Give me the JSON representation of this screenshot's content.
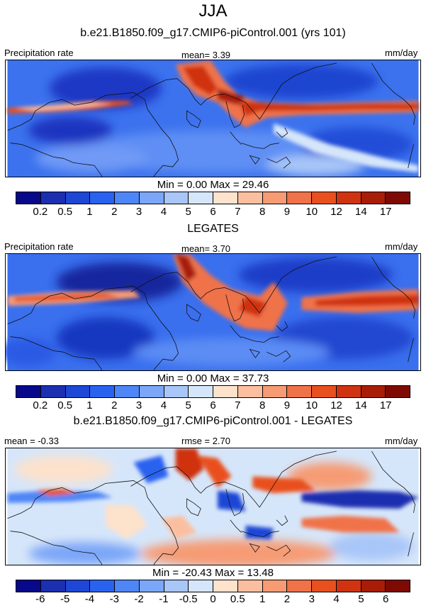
{
  "title": "JJA",
  "chart_data": [
    {
      "type": "heatmap",
      "title": "b.e21.B1850.f09_g17.CMIP6-piControl.001 (yrs 101)",
      "left_label": "Precipitation rate",
      "center_label": "mean=   3.39",
      "right_label": "mm/day",
      "stats": "Min =   0.00 Max =  29.46",
      "mean": 3.39,
      "min": 0.0,
      "max": 29.46,
      "colorbar_ticks": [
        "0.2",
        "0.5",
        "1",
        "2",
        "3",
        "4",
        "5",
        "6",
        "7",
        "8",
        "9",
        "10",
        "12",
        "14",
        "17"
      ],
      "colorbar_colors": [
        "#08088a",
        "#1b2fb0",
        "#1e47d6",
        "#2a62f0",
        "#4f86f7",
        "#7ca6f8",
        "#a8c6f8",
        "#d6e6fa",
        "#fde2cc",
        "#fbbfa0",
        "#f69b74",
        "#f07248",
        "#e9501f",
        "#cf3311",
        "#a81d08",
        "#7f0a03"
      ]
    },
    {
      "type": "heatmap",
      "title": "LEGATES",
      "left_label": "Precipitation rate",
      "center_label": "mean=   3.70",
      "right_label": "mm/day",
      "stats": "Min =   0.00 Max =  37.73",
      "mean": 3.7,
      "min": 0.0,
      "max": 37.73,
      "colorbar_ticks": [
        "0.2",
        "0.5",
        "1",
        "2",
        "3",
        "4",
        "5",
        "6",
        "7",
        "8",
        "9",
        "10",
        "12",
        "14",
        "17"
      ],
      "colorbar_colors": [
        "#08088a",
        "#1b2fb0",
        "#1e47d6",
        "#2a62f0",
        "#4f86f7",
        "#7ca6f8",
        "#a8c6f8",
        "#d6e6fa",
        "#fde2cc",
        "#fbbfa0",
        "#f69b74",
        "#f07248",
        "#e9501f",
        "#cf3311",
        "#a81d08",
        "#7f0a03"
      ]
    },
    {
      "type": "heatmap",
      "title": "b.e21.B1850.f09_g17.CMIP6-piControl.001 - LEGATES",
      "left_label": "mean =  -0.33",
      "center_label": "rmse =   2.70",
      "right_label": "mm/day",
      "stats": "Min = -20.43 Max =  13.48",
      "mean": -0.33,
      "rmse": 2.7,
      "min": -20.43,
      "max": 13.48,
      "colorbar_ticks": [
        "-6",
        "-5",
        "-4",
        "-3",
        "-2",
        "-1",
        "-0.5",
        "0",
        "0.5",
        "1",
        "2",
        "3",
        "4",
        "5",
        "6"
      ],
      "colorbar_colors": [
        "#08088a",
        "#1b2fb0",
        "#1e47d6",
        "#2a62f0",
        "#4f86f7",
        "#7ca6f8",
        "#a8c6f8",
        "#d6e6fa",
        "#fde2cc",
        "#fbbfa0",
        "#f69b74",
        "#f07248",
        "#e9501f",
        "#cf3311",
        "#a81d08",
        "#7f0a03"
      ]
    }
  ]
}
